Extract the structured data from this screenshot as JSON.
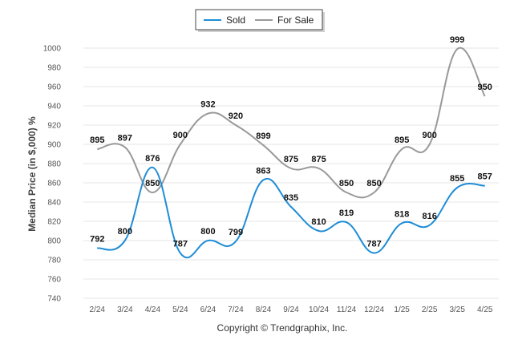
{
  "chart_data": {
    "type": "line",
    "categories": [
      "2/24",
      "3/24",
      "4/24",
      "5/24",
      "6/24",
      "7/24",
      "8/24",
      "9/24",
      "10/24",
      "11/24",
      "12/24",
      "1/25",
      "2/25",
      "3/25",
      "4/25"
    ],
    "series": [
      {
        "name": "Sold",
        "color": "#1f8dd6",
        "values": [
          792,
          800,
          876,
          787,
          800,
          799,
          863,
          835,
          810,
          819,
          787,
          818,
          816,
          855,
          857
        ]
      },
      {
        "name": "For Sale",
        "color": "#999999",
        "values": [
          895,
          897,
          850,
          900,
          932,
          920,
          899,
          875,
          875,
          850,
          850,
          895,
          900,
          999,
          950
        ]
      }
    ],
    "ylabel": "Median Price (in $,000) %",
    "xlabel": "",
    "ylim": [
      740,
      1000
    ],
    "yticks": [
      740,
      760,
      780,
      800,
      820,
      840,
      860,
      880,
      900,
      920,
      940,
      960,
      980,
      1000
    ],
    "grid": true,
    "legend_position": "top-center"
  },
  "footer": {
    "copyright": "Copyright © Trendgraphix, Inc."
  }
}
